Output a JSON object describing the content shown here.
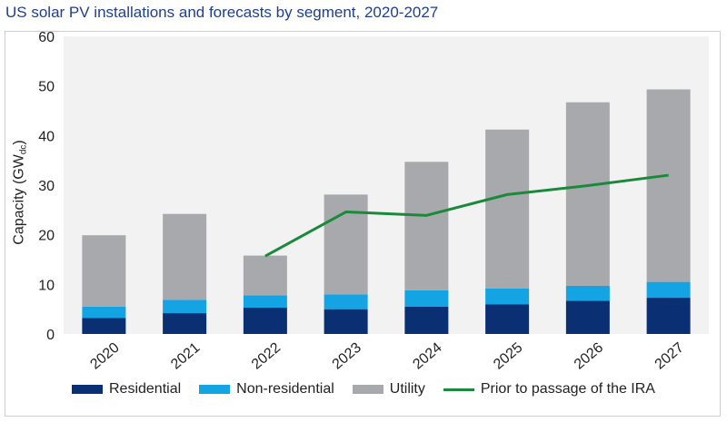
{
  "chart_data": {
    "type": "bar",
    "title": "US solar PV installations and forecasts by segment, 2020-2027",
    "ylabel_main": "Capacity (GW",
    "ylabel_sub": "dc",
    "ylabel_close": ")",
    "ylim": [
      0,
      60
    ],
    "yticks": [
      0,
      10,
      20,
      30,
      40,
      50,
      60
    ],
    "categories": [
      "2020",
      "2021",
      "2022",
      "2023",
      "2024",
      "2025",
      "2026",
      "2027"
    ],
    "stacked": true,
    "grid": false,
    "legend_position": "bottom",
    "series": [
      {
        "name": "Residential",
        "color": "#0b2f73",
        "values": [
          3.2,
          4.2,
          5.3,
          5.0,
          5.5,
          6.0,
          6.7,
          7.3
        ]
      },
      {
        "name": "Non-residential",
        "color": "#14a3e3",
        "values": [
          2.3,
          2.7,
          2.5,
          3.0,
          3.3,
          3.2,
          3.0,
          3.2
        ]
      },
      {
        "name": "Utility",
        "color": "#a8a9ad",
        "values": [
          14.4,
          17.3,
          8.0,
          20.1,
          25.9,
          32.0,
          37.0,
          38.8
        ]
      }
    ],
    "line_series": {
      "name": "Prior to passage of the IRA",
      "color": "#1a8a3a",
      "values": [
        null,
        null,
        15.7,
        24.6,
        23.9,
        28.1,
        29.9,
        32.0
      ]
    }
  }
}
